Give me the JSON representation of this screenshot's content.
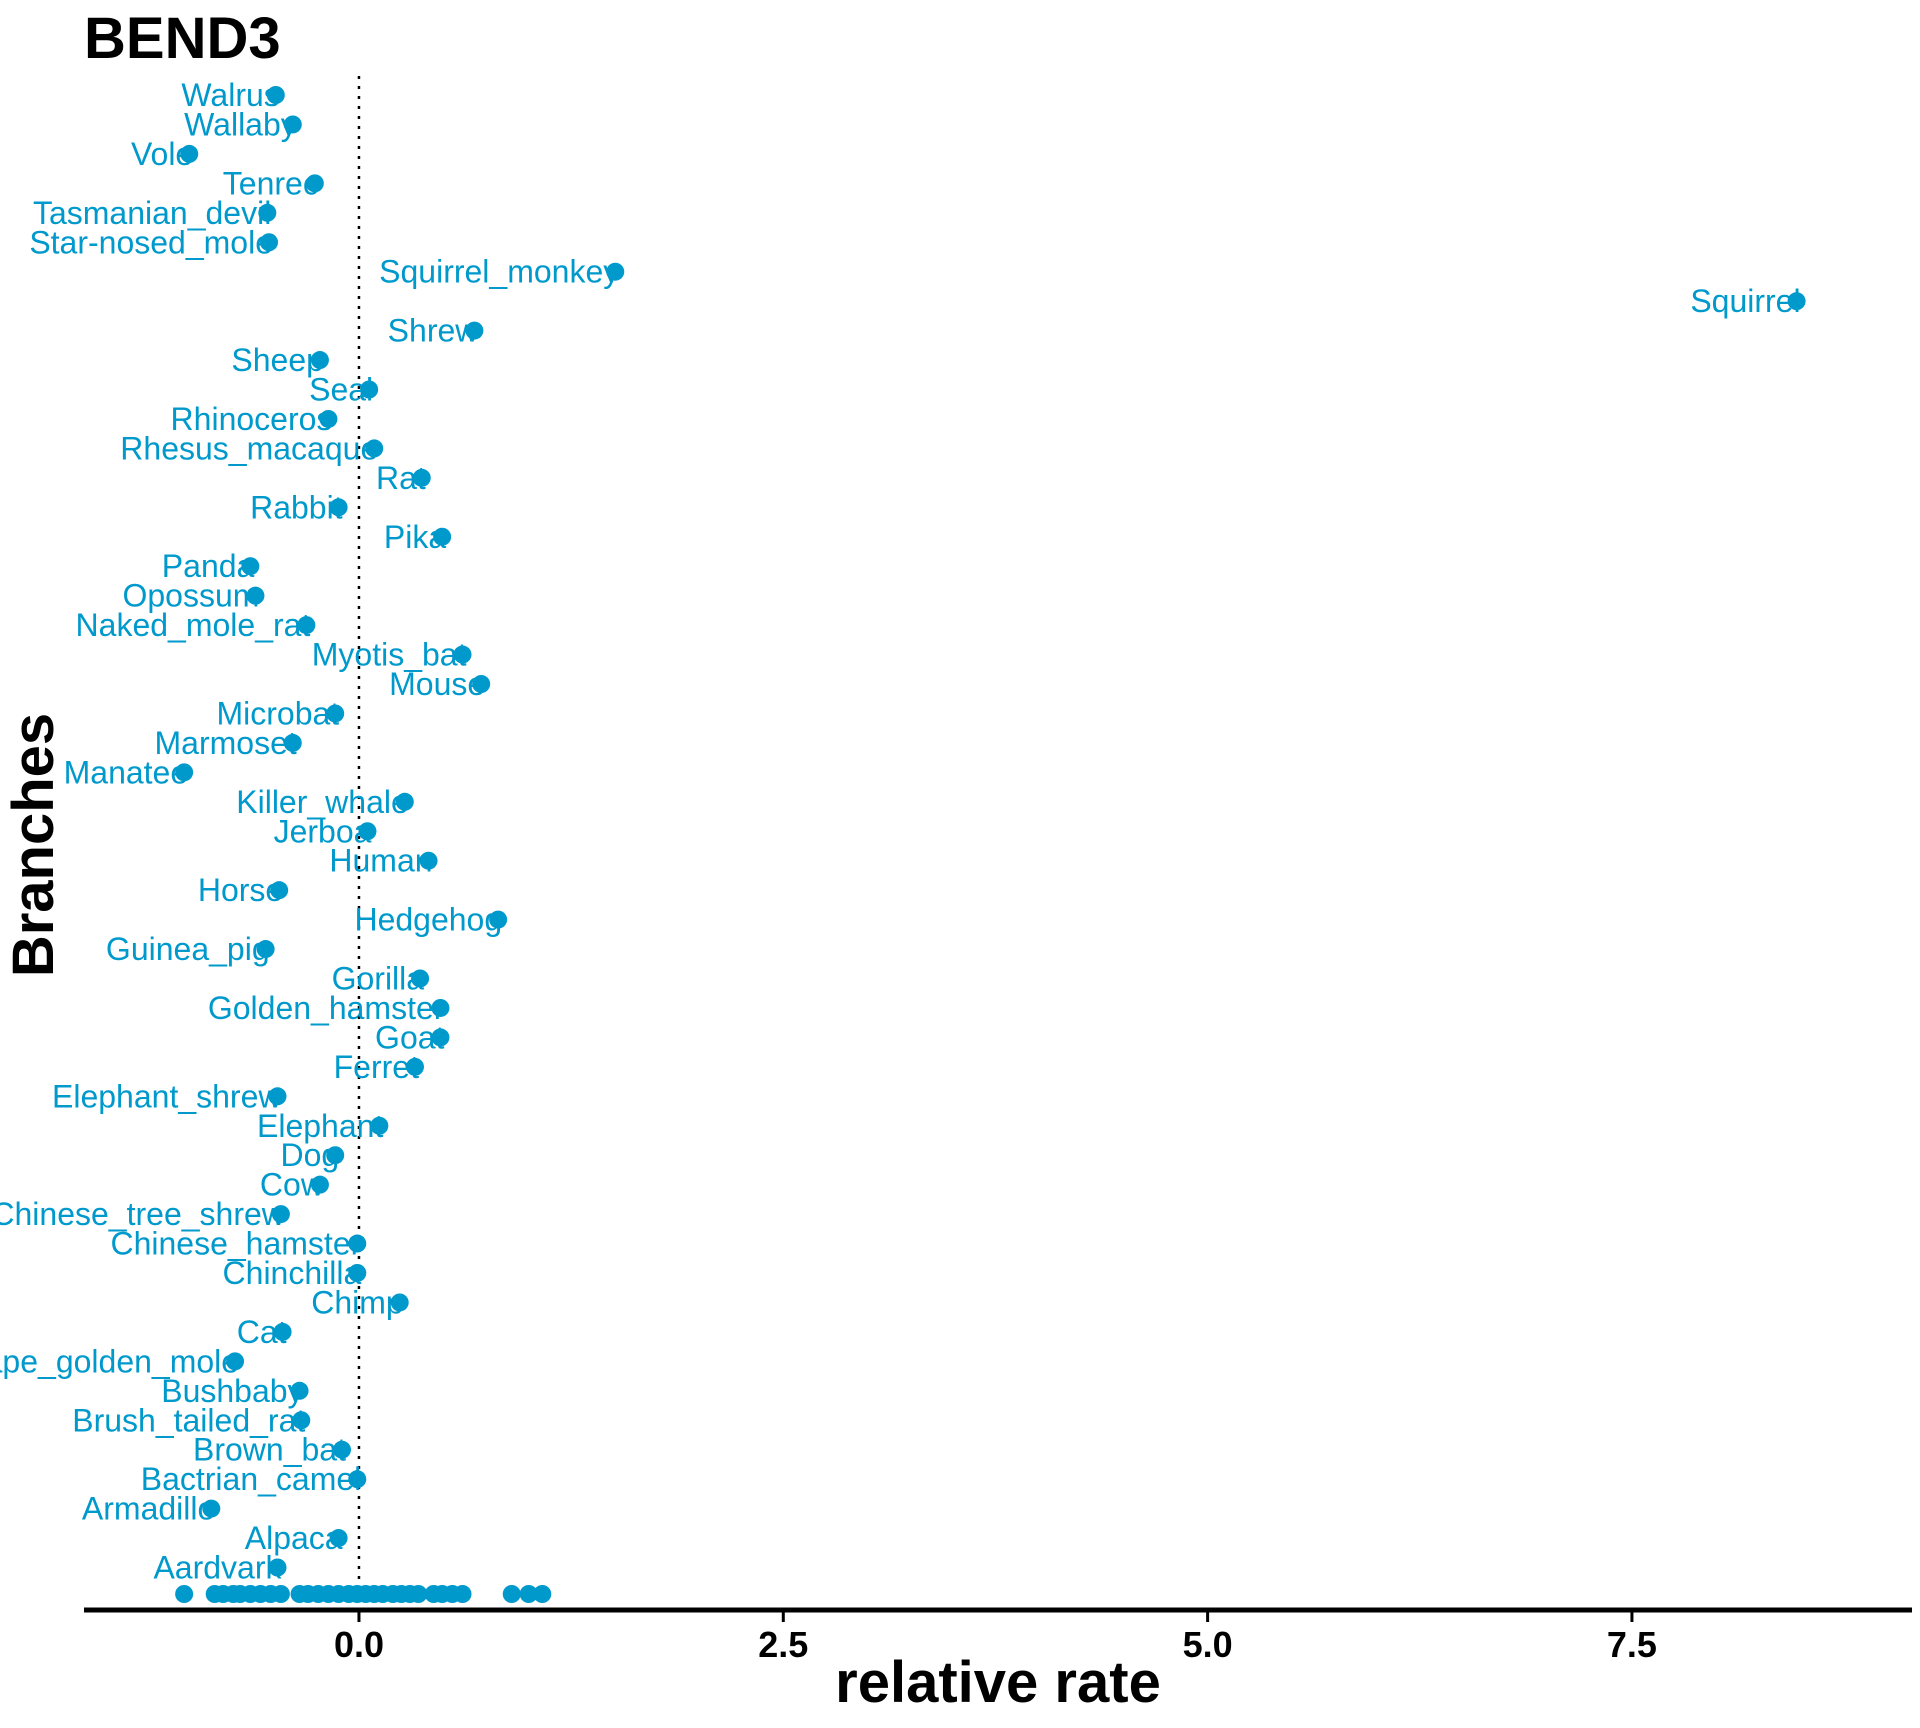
{
  "chart_data": {
    "type": "scatter",
    "title": "BEND3",
    "xlabel": "relative rate",
    "ylabel": "Branches",
    "xlim": [
      -1.62,
      9.15
    ],
    "x_ticks": [
      0.0,
      2.5,
      5.0,
      7.5
    ],
    "x_tick_labels": [
      "0.0",
      "2.5",
      "5.0",
      "7.5"
    ],
    "reference_line_x": 0,
    "color": "#0099cc",
    "grid": false,
    "legend": "none",
    "points": [
      {
        "label": "Walrus",
        "x": -0.49
      },
      {
        "label": "Wallaby",
        "x": -0.39
      },
      {
        "label": "Vole",
        "x": -1.0
      },
      {
        "label": "Tenrec",
        "x": -0.26
      },
      {
        "label": "Tasmanian_devil",
        "x": -0.54
      },
      {
        "label": "Star-nosed_mole",
        "x": -0.53
      },
      {
        "label": "Squirrel_monkey",
        "x": 1.51
      },
      {
        "label": "Squirrel",
        "x": 8.47
      },
      {
        "label": "Shrew",
        "x": 0.68
      },
      {
        "label": "Sheep",
        "x": -0.23
      },
      {
        "label": "Seal",
        "x": 0.06
      },
      {
        "label": "Rhinoceros",
        "x": -0.18
      },
      {
        "label": "Rhesus_macaque",
        "x": 0.09
      },
      {
        "label": "Rat",
        "x": 0.37
      },
      {
        "label": "Rabbit",
        "x": -0.12
      },
      {
        "label": "Pika",
        "x": 0.49
      },
      {
        "label": "Panda",
        "x": -0.64
      },
      {
        "label": "Opossum",
        "x": -0.61
      },
      {
        "label": "Naked_mole_rat",
        "x": -0.31
      },
      {
        "label": "Myotis_bat",
        "x": 0.61
      },
      {
        "label": "Mouse",
        "x": 0.72
      },
      {
        "label": "Microbat",
        "x": -0.14
      },
      {
        "label": "Marmoset",
        "x": -0.39
      },
      {
        "label": "Manatee",
        "x": -1.03
      },
      {
        "label": "Killer_whale",
        "x": 0.27
      },
      {
        "label": "Jerboa",
        "x": 0.05
      },
      {
        "label": "Human",
        "x": 0.41
      },
      {
        "label": "Horse",
        "x": -0.47
      },
      {
        "label": "Hedgehog",
        "x": 0.82
      },
      {
        "label": "Guinea_pig",
        "x": -0.55
      },
      {
        "label": "Gorilla",
        "x": 0.36
      },
      {
        "label": "Golden_hamster",
        "x": 0.48
      },
      {
        "label": "Goat",
        "x": 0.48
      },
      {
        "label": "Ferret",
        "x": 0.33
      },
      {
        "label": "Elephant_shrew",
        "x": -0.48
      },
      {
        "label": "Elephant",
        "x": 0.12
      },
      {
        "label": "Dog",
        "x": -0.14
      },
      {
        "label": "Cow",
        "x": -0.23
      },
      {
        "label": "Chinese_tree_shrew",
        "x": -0.46
      },
      {
        "label": "Chinese_hamster",
        "x": -0.01
      },
      {
        "label": "Chinchilla",
        "x": -0.01
      },
      {
        "label": "Chimp",
        "x": 0.24
      },
      {
        "label": "Cat",
        "x": -0.45
      },
      {
        "label": "Cape_golden_mole",
        "x": -0.73
      },
      {
        "label": "Bushbaby",
        "x": -0.35
      },
      {
        "label": "Brush_tailed_rat",
        "x": -0.34
      },
      {
        "label": "Brown_bat",
        "x": -0.1
      },
      {
        "label": "Bactrian_camel",
        "x": -0.01
      },
      {
        "label": "Armadillo",
        "x": -0.87
      },
      {
        "label": "Alpaca",
        "x": -0.12
      },
      {
        "label": "Aardvark",
        "x": -0.48
      }
    ],
    "rug_x": [
      -1.03,
      -0.85,
      -0.8,
      -0.74,
      -0.7,
      -0.64,
      -0.58,
      -0.52,
      -0.46,
      -0.35,
      -0.3,
      -0.24,
      -0.18,
      -0.12,
      -0.06,
      -0.01,
      0.04,
      0.09,
      0.14,
      0.2,
      0.25,
      0.3,
      0.35,
      0.44,
      0.49,
      0.55,
      0.61,
      0.9,
      1.0,
      1.08
    ]
  }
}
